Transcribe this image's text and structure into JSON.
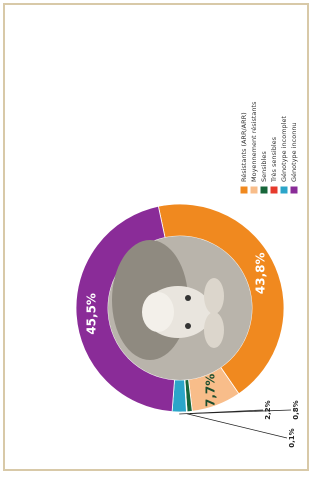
{
  "chart_data": {
    "type": "pie",
    "categories": [
      "Résistants (ARR/ARR)",
      "Moyennement résistants",
      "Sensibles",
      "Très sensibles",
      "Génotype incomplet",
      "Génotype inconnu"
    ],
    "values": [
      43.8,
      7.7,
      0.8,
      0.1,
      2.2,
      45.5
    ],
    "value_labels": [
      "43,8%",
      "7,7%",
      "0,8%",
      "0,1%",
      "2,2%",
      "45,5%"
    ],
    "colors": [
      "#f0891f",
      "#f8bd8a",
      "#17663a",
      "#e63a2c",
      "#2ba5c9",
      "#8a2c98"
    ]
  }
}
